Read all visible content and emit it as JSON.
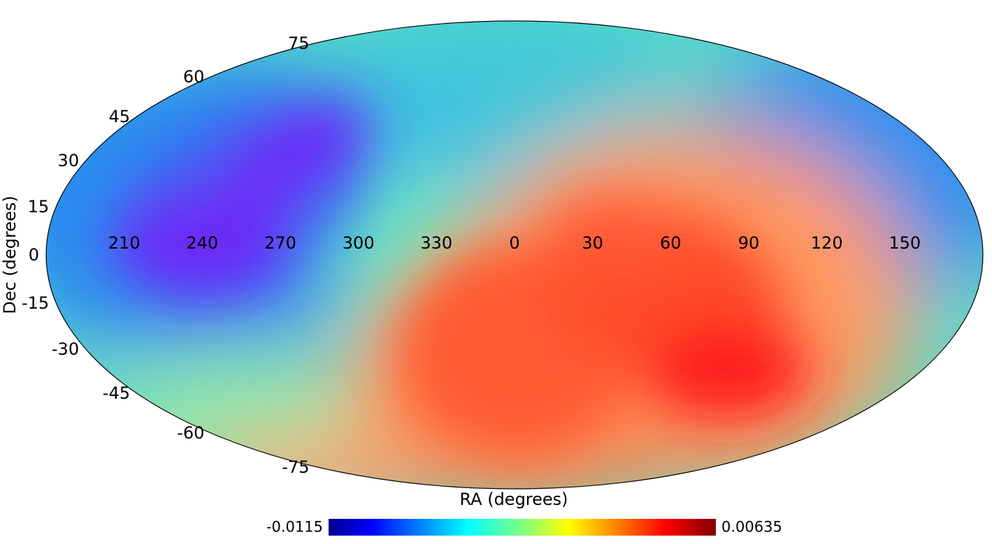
{
  "map": {
    "projection": "mollweide",
    "colormap": "jet",
    "xlabel": "RA (degrees)",
    "ylabel": "Dec (degrees)",
    "ra_ticks": [
      "210",
      "240",
      "270",
      "300",
      "330",
      "0",
      "30",
      "60",
      "90",
      "120",
      "150"
    ],
    "dec_ticks": [
      "75",
      "60",
      "45",
      "30",
      "15",
      "0",
      "-15",
      "-30",
      "-45",
      "-60",
      "-75"
    ],
    "colorbar": {
      "min": -0.0115,
      "max": 0.00635,
      "min_label": "-0.0115",
      "max_label": "0.00635"
    },
    "features": [
      {
        "name": "minimum (deep blue/violet region)",
        "ra": 240,
        "dec": 8,
        "value": -0.0087
      },
      {
        "name": "maximum (red region)",
        "ra": 80,
        "dec": -38,
        "value": 0.0055
      },
      {
        "name": "broad positive region",
        "ra": 10,
        "dec": -42,
        "value": 0.004
      }
    ]
  }
}
